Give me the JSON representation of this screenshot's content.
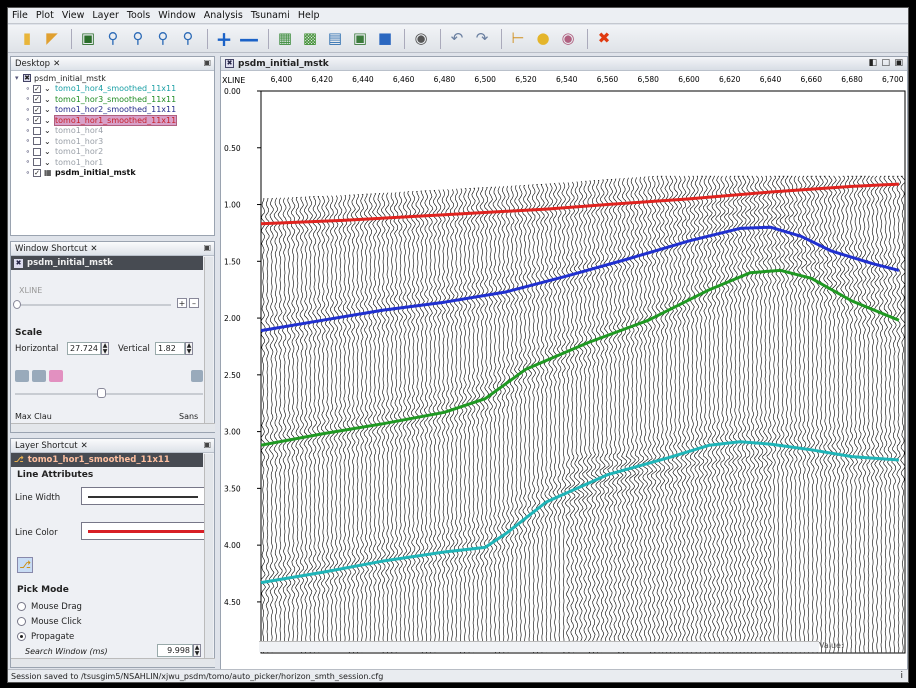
{
  "menu": [
    "File",
    "Plot",
    "View",
    "Layer",
    "Tools",
    "Window",
    "Analysis",
    "Tsunami",
    "Help"
  ],
  "toolbar_icons": [
    "open-folder",
    "open-file",
    "zoom-fit",
    "zoom-in",
    "zoom-out",
    "zoom-box",
    "zoom-reset",
    "add",
    "remove",
    "table",
    "bar-chart",
    "line-plot",
    "image",
    "map",
    "camera",
    "undo",
    "redo",
    "picker",
    "bulb",
    "disc",
    "close"
  ],
  "desktop": {
    "tab_label": "Desktop",
    "root": "psdm_initial_mstk",
    "layers": [
      {
        "label": "tomo1_hor4_smoothed_11x11",
        "color": "#199fa5",
        "checked": true
      },
      {
        "label": "tomo1_hor3_smoothed_11x11",
        "color": "#1e8a22",
        "checked": true
      },
      {
        "label": "tomo1_hor2_smoothed_11x11",
        "color": "#232a8a",
        "checked": true
      },
      {
        "label": "tomo1_hor1_smoothed_11x11",
        "color": "#c8202a",
        "checked": true
      },
      {
        "label": "tomo1_hor4",
        "color": "#9aa0a8",
        "checked": false
      },
      {
        "label": "tomo1_hor3",
        "color": "#9aa0a8",
        "checked": false
      },
      {
        "label": "tomo1_hor2",
        "color": "#9aa0a8",
        "checked": false
      },
      {
        "label": "tomo1_hor1",
        "color": "#9aa0a8",
        "checked": false
      },
      {
        "label": "psdm_initial_mstk",
        "color": "#111111",
        "checked": true
      }
    ]
  },
  "window_shortcut": {
    "tab_label": "Window Shortcut",
    "title": "psdm_initial_mstk",
    "xline_label": "XLINE",
    "scale_label": "Scale",
    "horizontal_label": "Horizontal",
    "horizontal_value": "27.724",
    "vertical_label": "Vertical",
    "vertical_value": "1.82",
    "cut_left": "Max Clau",
    "cut_right": "Sans"
  },
  "layer_shortcut": {
    "tab_label": "Layer Shortcut",
    "title": "tomo1_hor1_smoothed_11x11",
    "line_attributes": "Line Attributes",
    "line_width_label": "Line Width",
    "line_color_label": "Line Color",
    "line_color": "#d81f26",
    "pick_mode_label": "Pick Mode",
    "modes": [
      "Mouse Drag",
      "Mouse Click",
      "Propagate"
    ],
    "selected_mode": "Propagate",
    "search_window_label": "Search Window (ms)",
    "search_window_value": "9.998"
  },
  "viewer": {
    "title": "psdm_initial_mstk",
    "x_axis_label": "XLINE",
    "x_ticks": [
      "6,400",
      "6,420",
      "6,440",
      "6,460",
      "6,480",
      "6,500",
      "6,520",
      "6,540",
      "6,560",
      "6,580",
      "6,600",
      "6,620",
      "6,640",
      "6,660",
      "6,680",
      "6,700"
    ],
    "y_ticks": [
      "0.00",
      "0.50",
      "1.00",
      "1.50",
      "2.00",
      "2.50",
      "3.00",
      "3.50",
      "4.00",
      "4.50"
    ],
    "value_label": "Value:",
    "horizons": [
      {
        "name": "tomo1_hor1_smoothed_11x11",
        "color": "#e0231f",
        "points": [
          [
            6390,
            1.17
          ],
          [
            6430,
            1.14
          ],
          [
            6480,
            1.09
          ],
          [
            6520,
            1.05
          ],
          [
            6530,
            1.04
          ],
          [
            6560,
            1.0
          ],
          [
            6600,
            0.95
          ],
          [
            6640,
            0.89
          ],
          [
            6680,
            0.84
          ],
          [
            6703,
            0.82
          ]
        ]
      },
      {
        "name": "tomo1_hor2_smoothed_11x11",
        "color": "#2030d0",
        "points": [
          [
            6390,
            2.11
          ],
          [
            6420,
            2.02
          ],
          [
            6450,
            1.93
          ],
          [
            6480,
            1.86
          ],
          [
            6510,
            1.77
          ],
          [
            6540,
            1.63
          ],
          [
            6570,
            1.48
          ],
          [
            6600,
            1.32
          ],
          [
            6625,
            1.21
          ],
          [
            6640,
            1.2
          ],
          [
            6655,
            1.28
          ],
          [
            6670,
            1.41
          ],
          [
            6690,
            1.52
          ],
          [
            6703,
            1.58
          ]
        ]
      },
      {
        "name": "tomo1_hor3_smoothed_11x11",
        "color": "#1f9922",
        "points": [
          [
            6390,
            3.12
          ],
          [
            6420,
            3.02
          ],
          [
            6450,
            2.93
          ],
          [
            6480,
            2.83
          ],
          [
            6500,
            2.71
          ],
          [
            6520,
            2.45
          ],
          [
            6550,
            2.22
          ],
          [
            6580,
            2.02
          ],
          [
            6610,
            1.75
          ],
          [
            6630,
            1.6
          ],
          [
            6645,
            1.58
          ],
          [
            6660,
            1.65
          ],
          [
            6680,
            1.85
          ],
          [
            6703,
            2.02
          ]
        ]
      },
      {
        "name": "tomo1_hor4_smoothed_11x11",
        "color": "#1fb5b8",
        "points": [
          [
            6390,
            4.33
          ],
          [
            6420,
            4.24
          ],
          [
            6450,
            4.14
          ],
          [
            6480,
            4.06
          ],
          [
            6500,
            4.02
          ],
          [
            6510,
            3.9
          ],
          [
            6530,
            3.62
          ],
          [
            6560,
            3.38
          ],
          [
            6590,
            3.23
          ],
          [
            6610,
            3.12
          ],
          [
            6625,
            3.09
          ],
          [
            6640,
            3.11
          ],
          [
            6660,
            3.16
          ],
          [
            6680,
            3.22
          ],
          [
            6703,
            3.25
          ]
        ]
      }
    ]
  },
  "status_text": "Session saved to /tsusgim5/NSAHLIN/xjwu_psdm/tomo/auto_picker/horizon_smth_session.cfg"
}
